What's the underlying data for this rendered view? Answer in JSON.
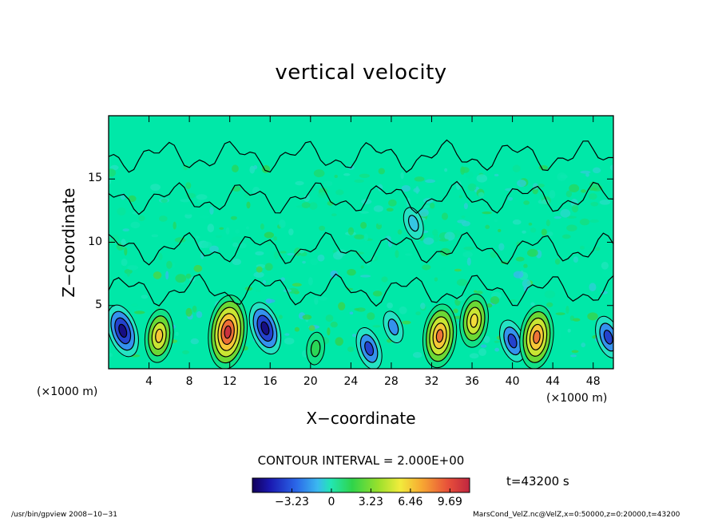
{
  "chart_data": {
    "type": "heatmap",
    "title": "vertical velocity",
    "xlabel": "X−coordinate",
    "ylabel": "Z−coordinate",
    "x_unit_left": "(×1000 m)",
    "x_unit_right": "(×1000 m)",
    "xlim": [
      0,
      50
    ],
    "ylim": [
      0,
      20
    ],
    "x_ticks": [
      "4",
      "8",
      "12",
      "16",
      "20",
      "24",
      "28",
      "32",
      "36",
      "40",
      "44",
      "48"
    ],
    "x_tick_values": [
      4,
      8,
      12,
      16,
      20,
      24,
      28,
      32,
      36,
      40,
      44,
      48
    ],
    "y_ticks": [
      "5",
      "10",
      "15"
    ],
    "y_tick_values": [
      5,
      10,
      15
    ],
    "contour_interval_text": "CONTOUR INTERVAL = 2.000E+00",
    "contour_interval": 2.0,
    "colorbar": {
      "tick_labels": [
        "−3.23",
        "0",
        "3.23",
        "6.46",
        "9.69"
      ],
      "tick_values": [
        -3.23,
        0,
        3.23,
        6.46,
        9.69
      ],
      "range": [
        -6.46,
        11.3
      ]
    },
    "time_label": "t=43200 s",
    "cells": [
      {
        "x": 1.4,
        "z": 3.0,
        "w": -7.5
      },
      {
        "x": 5.0,
        "z": 2.6,
        "w": 7.0
      },
      {
        "x": 11.8,
        "z": 2.9,
        "w": 10.5
      },
      {
        "x": 15.5,
        "z": 3.2,
        "w": -7.5
      },
      {
        "x": 20.5,
        "z": 1.6,
        "w": 1.2
      },
      {
        "x": 25.8,
        "z": 1.6,
        "w": -5.0
      },
      {
        "x": 28.2,
        "z": 3.3,
        "w": -3.0
      },
      {
        "x": 32.8,
        "z": 2.6,
        "w": 8.5
      },
      {
        "x": 36.2,
        "z": 3.8,
        "w": 6.0
      },
      {
        "x": 40.0,
        "z": 2.2,
        "w": -5.0
      },
      {
        "x": 42.4,
        "z": 2.5,
        "w": 8.5
      },
      {
        "x": 49.5,
        "z": 2.5,
        "w": -5.0
      },
      {
        "x": 30.2,
        "z": 11.5,
        "w": -1.3
      }
    ]
  },
  "footer_left": "/usr/bin/gpview   2008−10−31",
  "footer_right": "MarsCond_VelZ.nc@VelZ,x=0:50000,z=0:20000,t=43200"
}
